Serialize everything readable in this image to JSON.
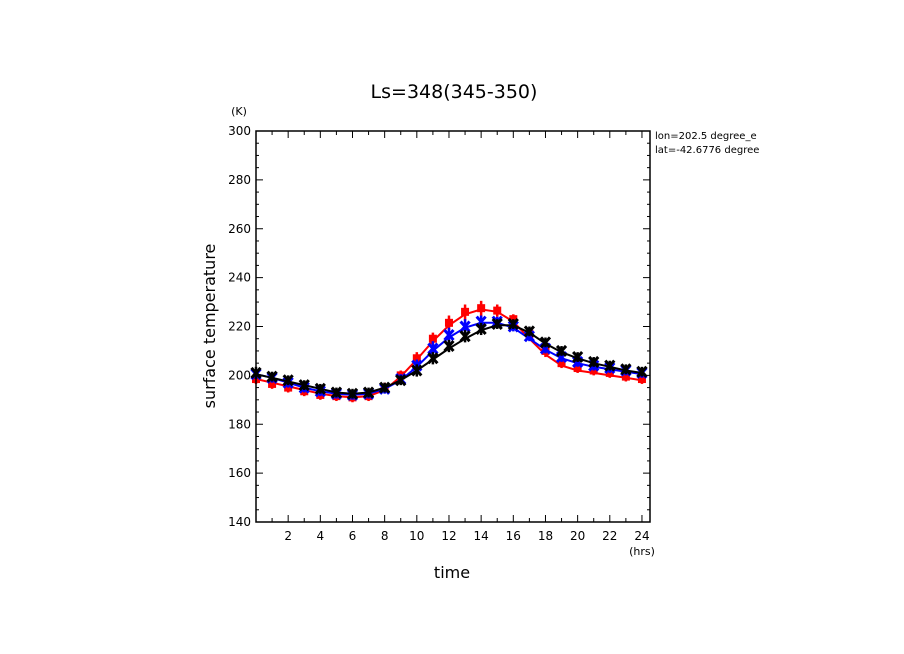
{
  "chart_data": {
    "type": "line",
    "title": "Ls=348(345-350)",
    "xlabel": "time",
    "ylabel": "surface temperature",
    "x_unit": "(hrs)",
    "y_unit": "(K)",
    "xlim": [
      0,
      24.5
    ],
    "ylim": [
      140,
      300
    ],
    "x_ticks": [
      2,
      4,
      6,
      8,
      10,
      12,
      14,
      16,
      18,
      20,
      22,
      24
    ],
    "y_ticks": [
      140,
      160,
      180,
      200,
      220,
      240,
      260,
      280,
      300
    ],
    "annotations": [
      "lon=202.5 degree_e",
      "lat=-42.6776 degree"
    ],
    "grid": false,
    "x": [
      0.0,
      1.0,
      2.0,
      3.0,
      4.0,
      5.0,
      6.0,
      7.0,
      8.0,
      9.0,
      10.0,
      11.0,
      12.0,
      13.0,
      14.0,
      15.0,
      16.0,
      17.0,
      18.0,
      19.0,
      20.0,
      21.0,
      22.0,
      23.0,
      24.0
    ],
    "series": [
      {
        "color": "#ff0000",
        "marker": "square",
        "line": [
          198.5,
          197,
          195.5,
          194,
          192.5,
          191.5,
          191,
          191.5,
          194,
          199.5,
          206.5,
          214,
          220.5,
          225,
          227,
          226,
          222,
          215,
          208.5,
          204,
          202,
          201,
          200,
          199,
          198
        ],
        "points": [
          198.5,
          196.5,
          195,
          193.5,
          192,
          191.5,
          191,
          191.5,
          195,
          200,
          207,
          215,
          221.5,
          226,
          227.5,
          226.5,
          223,
          217,
          210,
          205,
          203,
          202,
          201,
          199.5,
          198.5
        ],
        "upper": [
          201,
          199,
          197.5,
          196,
          194.5,
          193.5,
          193,
          193.5,
          197,
          202,
          209.5,
          217.5,
          224.5,
          229,
          230.5,
          229,
          225,
          219,
          212,
          207,
          205,
          204,
          203,
          201.5,
          200.5
        ],
        "lower": [
          196.5,
          194.5,
          193,
          191.5,
          190,
          189.5,
          189,
          189.5,
          193,
          197.5,
          204.5,
          212.5,
          218.5,
          222.5,
          224,
          224,
          220.5,
          214.5,
          207.5,
          203,
          201,
          200,
          199,
          197.5,
          196.5
        ]
      },
      {
        "color": "#0000ff",
        "marker": "x",
        "line": [
          200.5,
          199,
          197,
          195,
          193.5,
          192.5,
          192,
          192.5,
          194.5,
          198,
          203.5,
          210,
          215.5,
          219.5,
          221.5,
          221.5,
          219.5,
          215,
          210.5,
          207,
          205,
          203.5,
          202.5,
          201.5,
          200.5
        ],
        "points": [
          200.5,
          199,
          197,
          195,
          193.5,
          192.5,
          192,
          192.5,
          194.5,
          198.5,
          204,
          211,
          216.5,
          220,
          222,
          222,
          220,
          216,
          211,
          207.5,
          205.5,
          204,
          203,
          202,
          201
        ],
        "upper": [
          202.5,
          201,
          199,
          197,
          195.5,
          194.5,
          194,
          194.5,
          196.5,
          200.5,
          206.5,
          214,
          219.5,
          223,
          224.5,
          224,
          222,
          218,
          213,
          209.5,
          207.5,
          206,
          205,
          204,
          203
        ],
        "lower": [
          198.5,
          197,
          195,
          193,
          191.5,
          190.5,
          190,
          190.5,
          192.5,
          196.5,
          201.5,
          208,
          213.5,
          217,
          219.5,
          220,
          218,
          214,
          209,
          205.5,
          203.5,
          202,
          201,
          200,
          199
        ]
      },
      {
        "color": "#000000",
        "marker": "x",
        "line": [
          200.5,
          199,
          197.5,
          196,
          194.5,
          193,
          192.5,
          193,
          195,
          198,
          202,
          206.5,
          211,
          215,
          218.5,
          220.5,
          220.5,
          217.5,
          213,
          209.5,
          207,
          205,
          203.5,
          202,
          201
        ],
        "points": [
          201,
          199.5,
          198,
          196,
          194.5,
          193,
          192.5,
          193,
          195,
          198,
          202,
          207,
          212,
          216,
          219,
          221,
          221,
          218,
          213.5,
          210,
          207.5,
          205.5,
          204,
          202.5,
          201.5
        ],
        "upper": [
          203.5,
          201.5,
          200,
          198,
          196.5,
          195,
          194.5,
          195,
          197,
          200,
          204.5,
          209.5,
          214.5,
          218.5,
          221.5,
          223,
          223,
          220,
          215.5,
          212,
          209.5,
          207.5,
          206,
          204.5,
          203.5
        ],
        "lower": [
          198.5,
          197.5,
          196,
          194,
          192.5,
          191,
          190.5,
          191,
          193,
          196,
          199.5,
          204.5,
          209.5,
          213.5,
          216.5,
          219,
          219,
          216,
          211.5,
          208,
          205.5,
          203.5,
          202,
          200.5,
          199.5
        ]
      }
    ]
  }
}
